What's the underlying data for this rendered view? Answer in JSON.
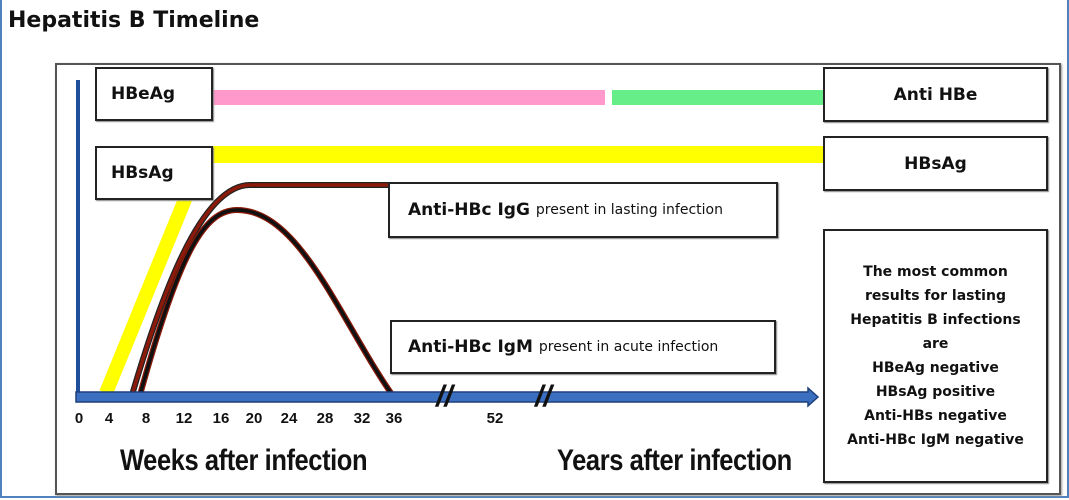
{
  "title": "Hepatitis B Timeline",
  "labels": {
    "hbeag_left": "HBeAg",
    "hbsag_left": "HBsAg",
    "anti_hbe_right": "Anti HBe",
    "hbsag_right": "HBsAg",
    "igg_bold": "Anti-HBc IgG",
    "igg_note": "present in lasting infection",
    "igm_bold": "Anti-HBc IgM",
    "igm_note": "present in acute infection"
  },
  "axis": {
    "ticks": [
      "0",
      "4",
      "8",
      "12",
      "16",
      "20",
      "24",
      "28",
      "32",
      "36",
      "52"
    ],
    "break_mark": "//",
    "weeks_label": "Weeks after infection",
    "years_label": "Years after infection"
  },
  "result_box": [
    "The most common",
    "results for lasting",
    "Hepatitis B infections",
    "are",
    "HBeAg negative",
    "HBsAg positive",
    "Anti-HBs negative",
    "Anti-HBc IgM negative"
  ],
  "colors": {
    "hbeag": "#ff99cc",
    "anti_hbe": "#66ee88",
    "hbsag": "#ffff00",
    "igg": "#8b1a0a",
    "igm": "#111111",
    "axis": "#2e5fa8"
  }
}
